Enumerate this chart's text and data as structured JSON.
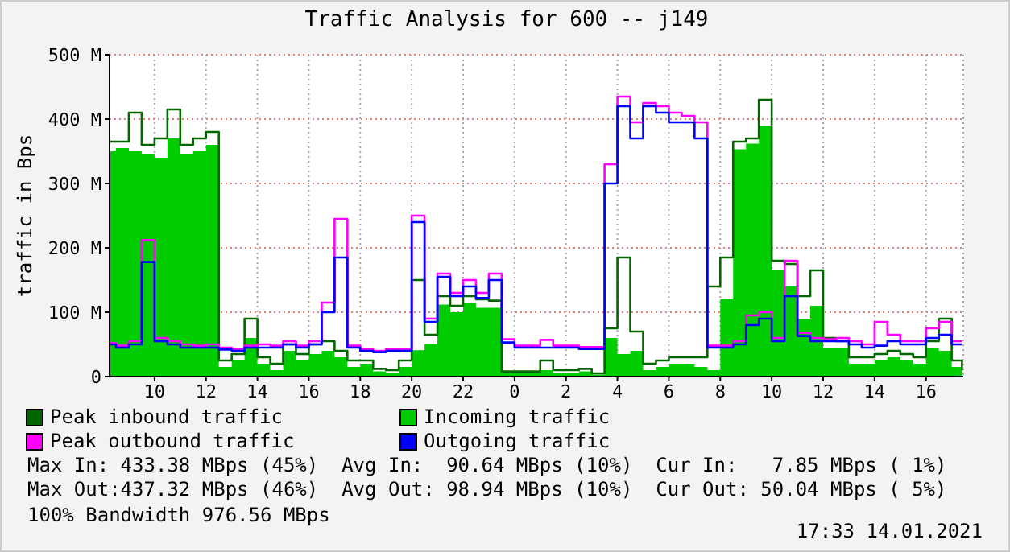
{
  "chart_data": {
    "type": "step",
    "title": "Traffic Analysis for 600 -- j149",
    "ylabel": "traffic in Bps",
    "x": [
      "2021-01-13T08:15",
      "2021-01-13T08:30",
      "2021-01-13T09:00",
      "2021-01-13T09:30",
      "2021-01-13T10:00",
      "2021-01-13T10:30",
      "2021-01-13T11:00",
      "2021-01-13T11:30",
      "2021-01-13T12:00",
      "2021-01-13T12:30",
      "2021-01-13T13:00",
      "2021-01-13T13:30",
      "2021-01-13T14:00",
      "2021-01-13T14:30",
      "2021-01-13T15:00",
      "2021-01-13T15:30",
      "2021-01-13T16:00",
      "2021-01-13T16:30",
      "2021-01-13T17:00",
      "2021-01-13T17:30",
      "2021-01-13T18:00",
      "2021-01-13T18:30",
      "2021-01-13T19:00",
      "2021-01-13T19:30",
      "2021-01-13T20:00",
      "2021-01-13T20:30",
      "2021-01-13T21:00",
      "2021-01-13T21:30",
      "2021-01-13T22:00",
      "2021-01-13T22:30",
      "2021-01-13T23:00",
      "2021-01-13T23:30",
      "2021-01-14T00:00",
      "2021-01-14T00:30",
      "2021-01-14T01:00",
      "2021-01-14T01:30",
      "2021-01-14T02:00",
      "2021-01-14T02:30",
      "2021-01-14T03:00",
      "2021-01-14T03:30",
      "2021-01-14T04:00",
      "2021-01-14T04:30",
      "2021-01-14T05:00",
      "2021-01-14T05:30",
      "2021-01-14T06:00",
      "2021-01-14T06:30",
      "2021-01-14T07:00",
      "2021-01-14T07:30",
      "2021-01-14T08:00",
      "2021-01-14T08:30",
      "2021-01-14T09:00",
      "2021-01-14T09:30",
      "2021-01-14T10:00",
      "2021-01-14T10:30",
      "2021-01-14T11:00",
      "2021-01-14T11:30",
      "2021-01-14T12:00",
      "2021-01-14T12:30",
      "2021-01-14T13:00",
      "2021-01-14T13:30",
      "2021-01-14T14:00",
      "2021-01-14T14:30",
      "2021-01-14T15:00",
      "2021-01-14T15:30",
      "2021-01-14T16:00",
      "2021-01-14T16:30",
      "2021-01-14T17:00",
      "2021-01-14T17:24"
    ],
    "series": [
      {
        "name": "Peak inbound traffic",
        "color": "#006600",
        "values": [
          365,
          365,
          410,
          360,
          370,
          415,
          360,
          370,
          380,
          25,
          35,
          90,
          30,
          20,
          50,
          35,
          50,
          55,
          40,
          25,
          25,
          12,
          10,
          25,
          150,
          65,
          125,
          110,
          125,
          120,
          118,
          8,
          8,
          8,
          25,
          10,
          10,
          12,
          5,
          75,
          185,
          70,
          20,
          25,
          30,
          30,
          30,
          140,
          185,
          365,
          370,
          430,
          180,
          175,
          125,
          165,
          60,
          55,
          30,
          30,
          35,
          40,
          35,
          30,
          55,
          90,
          25,
          10
        ]
      },
      {
        "name": "Incoming traffic",
        "type": "area",
        "color": "#00cc00",
        "values": [
          350,
          355,
          350,
          345,
          340,
          370,
          345,
          350,
          360,
          15,
          25,
          60,
          20,
          10,
          40,
          25,
          35,
          40,
          30,
          15,
          20,
          8,
          5,
          15,
          41,
          50,
          112,
          100,
          115,
          107,
          107,
          5,
          5,
          5,
          10,
          5,
          5,
          8,
          3,
          60,
          35,
          40,
          10,
          15,
          20,
          20,
          15,
          10,
          120,
          353,
          362,
          390,
          165,
          140,
          90,
          110,
          45,
          45,
          20,
          20,
          25,
          30,
          25,
          20,
          45,
          40,
          15,
          8
        ]
      },
      {
        "name": "Peak outbound traffic",
        "color": "#ff00ff",
        "values": [
          52,
          48,
          55,
          212,
          60,
          55,
          50,
          48,
          50,
          45,
          43,
          48,
          50,
          48,
          55,
          48,
          55,
          115,
          245,
          48,
          43,
          40,
          43,
          43,
          250,
          90,
          160,
          130,
          150,
          130,
          160,
          58,
          48,
          48,
          57,
          48,
          48,
          46,
          46,
          330,
          435,
          395,
          425,
          420,
          410,
          405,
          395,
          48,
          48,
          55,
          95,
          100,
          60,
          180,
          68,
          60,
          58,
          60,
          55,
          50,
          85,
          65,
          55,
          55,
          75,
          85,
          55,
          55
        ]
      },
      {
        "name": "Outgoing traffic",
        "color": "#0000ff",
        "values": [
          50,
          45,
          50,
          178,
          55,
          50,
          45,
          45,
          45,
          42,
          40,
          45,
          45,
          45,
          50,
          45,
          50,
          100,
          185,
          45,
          40,
          38,
          40,
          40,
          240,
          85,
          155,
          125,
          140,
          122,
          150,
          53,
          45,
          45,
          45,
          45,
          45,
          43,
          43,
          300,
          420,
          370,
          420,
          410,
          395,
          395,
          370,
          45,
          45,
          50,
          80,
          90,
          55,
          125,
          63,
          55,
          55,
          55,
          50,
          45,
          48,
          55,
          50,
          50,
          60,
          65,
          50,
          50
        ]
      }
    ],
    "xlim": [
      "2021-01-13T08:15",
      "2021-01-14T17:27"
    ],
    "xticks": [
      {
        "value": "2021-01-13T10:00",
        "label": "10"
      },
      {
        "value": "2021-01-13T12:00",
        "label": "12"
      },
      {
        "value": "2021-01-13T14:00",
        "label": "14"
      },
      {
        "value": "2021-01-13T16:00",
        "label": "16"
      },
      {
        "value": "2021-01-13T18:00",
        "label": "18"
      },
      {
        "value": "2021-01-13T20:00",
        "label": "20"
      },
      {
        "value": "2021-01-13T22:00",
        "label": "22"
      },
      {
        "value": "2021-01-14T00:00",
        "label": "0"
      },
      {
        "value": "2021-01-14T02:00",
        "label": "2"
      },
      {
        "value": "2021-01-14T04:00",
        "label": "4"
      },
      {
        "value": "2021-01-14T06:00",
        "label": "6"
      },
      {
        "value": "2021-01-14T08:00",
        "label": "8"
      },
      {
        "value": "2021-01-14T10:00",
        "label": "10"
      },
      {
        "value": "2021-01-14T12:00",
        "label": "12"
      },
      {
        "value": "2021-01-14T14:00",
        "label": "14"
      },
      {
        "value": "2021-01-14T16:00",
        "label": "16"
      }
    ],
    "ylim": [
      0,
      500
    ],
    "yticks": [
      0,
      {
        "value": 100,
        "label": "100 M"
      },
      {
        "value": 200,
        "label": "200 M"
      },
      {
        "value": 300,
        "label": "300 M"
      },
      {
        "value": 400,
        "label": "400 M"
      },
      {
        "value": 500,
        "label": "500 M"
      }
    ],
    "grid": true,
    "legend": "bottom",
    "annotations": [
      "Max In: 433.38 MBps (45%)  Avg In:  90.64 MBps (10%)  Cur In:   7.85 MBps ( 1%)",
      "Max Out:437.32 MBps (46%)  Avg Out: 98.94 MBps (10%)  Cur Out: 50.04 MBps ( 5%)",
      "100% Bandwidth 976.56 MBps",
      "17:33 14.01.2021"
    ]
  }
}
